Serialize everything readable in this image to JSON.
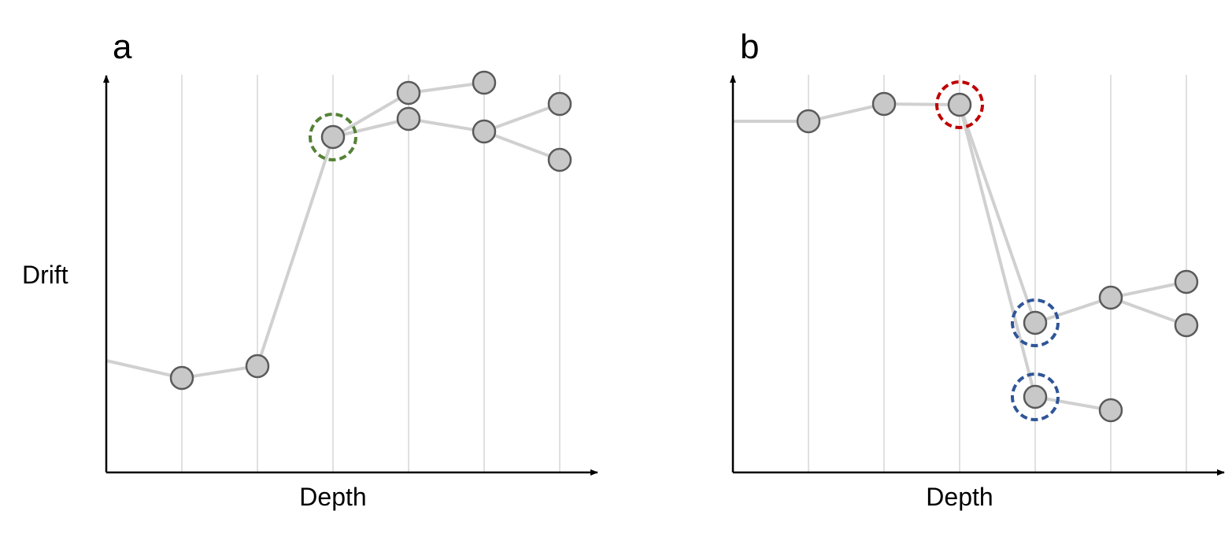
{
  "panels": [
    {
      "label": "a",
      "x_label": "Depth",
      "y_label": "Drift"
    },
    {
      "label": "b",
      "x_label": "Depth"
    }
  ]
}
